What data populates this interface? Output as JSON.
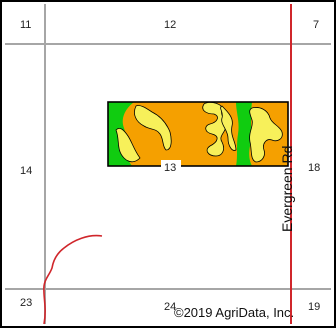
{
  "map": {
    "section_labels": {
      "top_left": "11",
      "top_center": "12",
      "top_right": "7",
      "mid_left": "14",
      "parcel_center": "13",
      "mid_right": "18",
      "bottom_left": "23",
      "bottom_center": "24",
      "bottom_right": "19"
    },
    "road_label": "Evergreen Rd",
    "copyright": "©2019 AgriData, Inc.",
    "colors": {
      "background": "#ffffff",
      "frame": "#000000",
      "section_line": "#a6a6a6",
      "road": "#d0262b",
      "soil_orange": "#f5a000",
      "soil_green": "#10cc10",
      "soil_yellow": "#f7f05a",
      "parcel_outline": "#000000"
    }
  }
}
